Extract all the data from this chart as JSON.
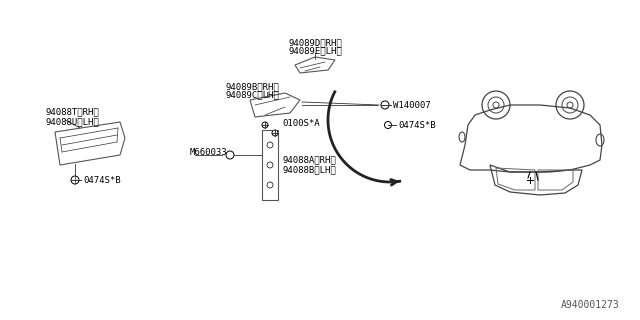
{
  "bg_color": "#ffffff",
  "line_color": "#000000",
  "part_color": "#888888",
  "diagram_id": "A940001273",
  "labels": {
    "top_part": [
      "94089D〈RH〉",
      "94089E〈LH〉"
    ],
    "mid_upper_part": [
      "94089B〈RH〉",
      "94089C〈LH〉"
    ],
    "screw_top": "0100S*A",
    "bolt_right_top": "W140007",
    "bolt_right_bot": "0474S*B",
    "bracket_label": "M660033",
    "lower_part": [
      "94088A〈RH〉",
      "94088B〈LH〉"
    ],
    "left_part": [
      "94088T〈RH〉",
      "94088U〈LH〉"
    ],
    "bolt_left": "0474S*B"
  },
  "font_size": 6.5,
  "diagram_font_size": 7
}
